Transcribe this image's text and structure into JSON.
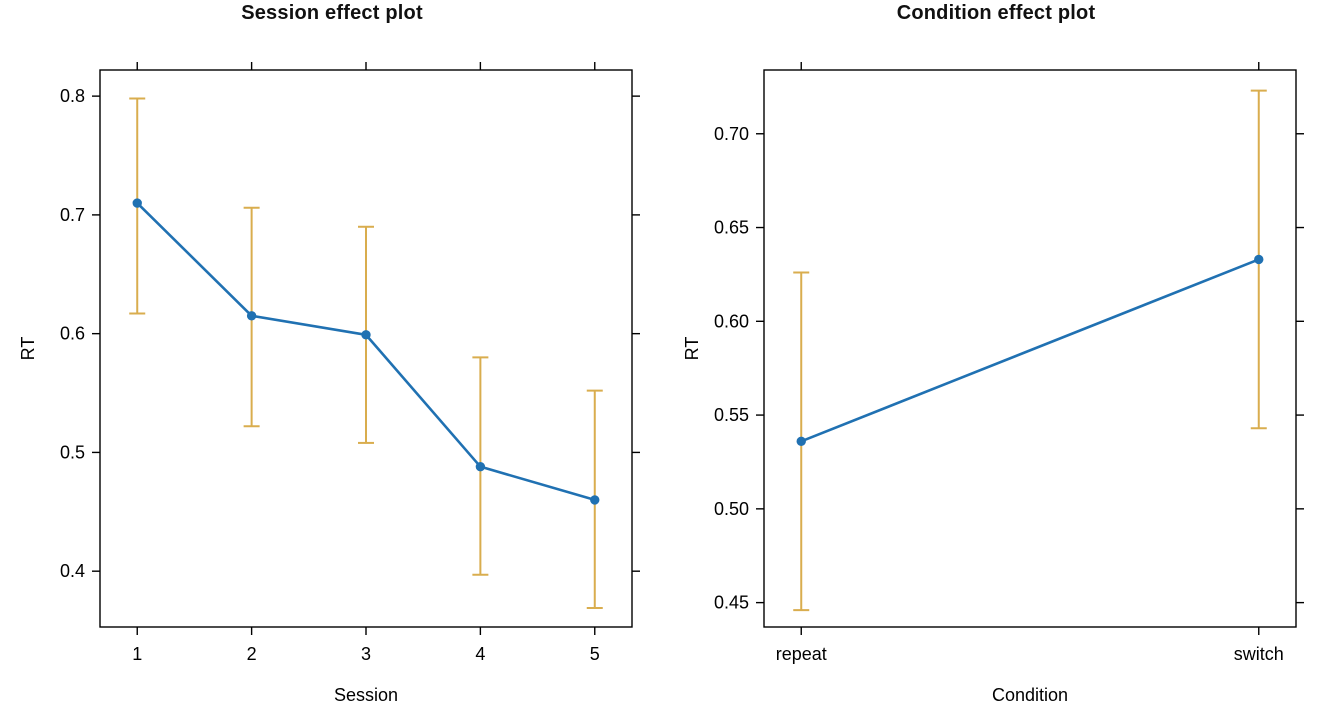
{
  "page": {
    "background": "#ffffff"
  },
  "style": {
    "line_color": "#2071b2",
    "point_color": "#2071b2",
    "error_bar_color": "#d9ad4e",
    "frame_color": "#000000",
    "text_color": "#000000"
  },
  "chart_data": [
    {
      "type": "line",
      "title": "Session effect plot",
      "xlabel": "Session",
      "ylabel": "RT",
      "categories": [
        "1",
        "2",
        "3",
        "4",
        "5"
      ],
      "values": [
        0.71,
        0.615,
        0.599,
        0.488,
        0.46
      ],
      "ci_lower": [
        0.617,
        0.522,
        0.508,
        0.397,
        0.369
      ],
      "ci_upper": [
        0.798,
        0.706,
        0.69,
        0.58,
        0.552
      ],
      "y_ticks": [
        {
          "value": 0.4,
          "label": "0.4"
        },
        {
          "value": 0.5,
          "label": "0.5"
        },
        {
          "value": 0.6,
          "label": "0.6"
        },
        {
          "value": 0.7,
          "label": "0.7"
        },
        {
          "value": 0.8,
          "label": "0.8"
        }
      ],
      "ylim": [
        0.353,
        0.822
      ],
      "grid": false,
      "legend": null,
      "error_bars": true
    },
    {
      "type": "line",
      "title": "Condition effect plot",
      "xlabel": "Condition",
      "ylabel": "RT",
      "categories": [
        "repeat",
        "switch"
      ],
      "values": [
        0.536,
        0.633
      ],
      "ci_lower": [
        0.446,
        0.543
      ],
      "ci_upper": [
        0.626,
        0.723
      ],
      "y_ticks": [
        {
          "value": 0.45,
          "label": "0.45"
        },
        {
          "value": 0.5,
          "label": "0.50"
        },
        {
          "value": 0.55,
          "label": "0.55"
        },
        {
          "value": 0.6,
          "label": "0.60"
        },
        {
          "value": 0.65,
          "label": "0.65"
        },
        {
          "value": 0.7,
          "label": "0.70"
        }
      ],
      "ylim": [
        0.437,
        0.734
      ],
      "grid": false,
      "legend": null,
      "error_bars": true
    }
  ]
}
